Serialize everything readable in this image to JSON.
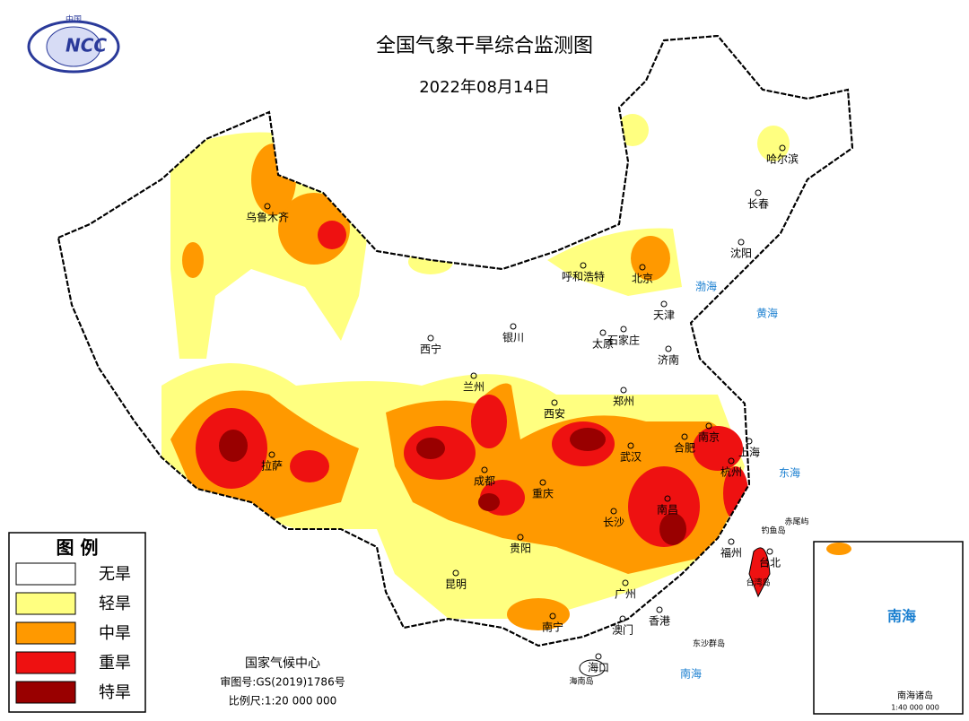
{
  "header": {
    "logo_top": "中国",
    "logo": "NCC",
    "title": "全国气象干旱综合监测图",
    "date": "2022年08月14日"
  },
  "legend": {
    "title": "图 例",
    "items": [
      {
        "label": "无旱",
        "color": "#ffffff"
      },
      {
        "label": "轻旱",
        "color": "#ffff80"
      },
      {
        "label": "中旱",
        "color": "#ff9900"
      },
      {
        "label": "重旱",
        "color": "#ee1111"
      },
      {
        "label": "特旱",
        "color": "#990000"
      }
    ]
  },
  "cities": [
    "乌鲁木齐",
    "哈尔滨",
    "长春",
    "沈阳",
    "呼和浩特",
    "北京",
    "天津",
    "石家庄",
    "太原",
    "济南",
    "银川",
    "西宁",
    "兰州",
    "西安",
    "郑州",
    "南京",
    "合肥",
    "上海",
    "武汉",
    "杭州",
    "成都",
    "重庆",
    "长沙",
    "南昌",
    "拉萨",
    "贵阳",
    "福州",
    "台北",
    "昆明",
    "广州",
    "南宁",
    "澳门",
    "香港",
    "海口"
  ],
  "places": [
    "钓鱼岛",
    "赤尾屿",
    "台湾岛",
    "东沙群岛",
    "海南岛"
  ],
  "seas": [
    "渤海",
    "黄海",
    "东海",
    "南海"
  ],
  "credits": [
    "国家气候中心",
    "审图号:GS(2019)1786号",
    "比例尺:1:20 000 000"
  ],
  "inset": {
    "sea": "南海",
    "title": "南海诸岛",
    "scale": "1:40 000 000"
  }
}
